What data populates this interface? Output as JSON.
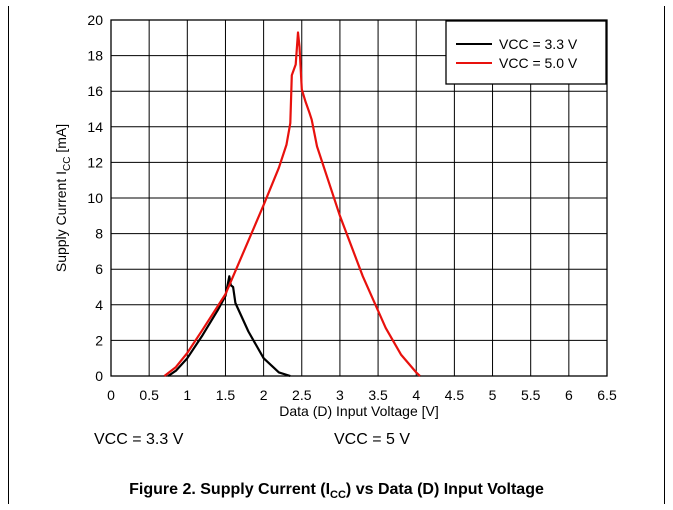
{
  "chart_data": {
    "type": "line",
    "xlabel": "Data (D) Input Voltage [V]",
    "ylabel_prefix": "Supply Current I",
    "ylabel_sub": "CC",
    "ylabel_suffix": " [mA]",
    "xlim": [
      0,
      6.5
    ],
    "ylim": [
      0,
      20
    ],
    "xticks": [
      "0",
      "0.5",
      "1",
      "1.5",
      "2",
      "2.5",
      "3",
      "3.5",
      "4",
      "4.5",
      "5",
      "5.5",
      "6",
      "6.5"
    ],
    "yticks": [
      "0",
      "2",
      "4",
      "6",
      "8",
      "10",
      "12",
      "14",
      "16",
      "18",
      "20"
    ],
    "grid": true,
    "legend_position": "top-right",
    "series": [
      {
        "name": "VCC = 3.3 V",
        "color": "#000000",
        "x": [
          0.75,
          0.85,
          1.0,
          1.2,
          1.4,
          1.5,
          1.55,
          1.57,
          1.6,
          1.63,
          1.8,
          2.0,
          2.2,
          2.35
        ],
        "y": [
          0.0,
          0.3,
          1.0,
          2.3,
          3.7,
          4.5,
          5.6,
          5.1,
          5.0,
          4.1,
          2.5,
          1.0,
          0.2,
          0.0
        ]
      },
      {
        "name": "VCC = 5.0 V",
        "color": "#e8110d",
        "x": [
          0.7,
          0.85,
          1.0,
          1.2,
          1.5,
          1.8,
          2.0,
          2.2,
          2.3,
          2.35,
          2.37,
          2.42,
          2.45,
          2.47,
          2.5,
          2.55,
          2.6,
          2.63,
          2.7,
          3.0,
          3.3,
          3.6,
          3.8,
          4.0,
          4.05
        ],
        "y": [
          0.0,
          0.5,
          1.3,
          2.6,
          4.6,
          7.6,
          9.6,
          11.7,
          13.0,
          14.2,
          16.9,
          17.5,
          19.3,
          18.5,
          16.1,
          15.4,
          14.8,
          14.4,
          12.9,
          9.0,
          5.6,
          2.7,
          1.2,
          0.2,
          0.0
        ]
      }
    ]
  },
  "conditions": {
    "left": "VCC = 3.3 V",
    "right": "VCC = 5 V"
  },
  "caption": {
    "prefix": "Figure 2. Supply Current (I",
    "sub": "CC",
    "suffix": ") vs Data (D) Input Voltage"
  }
}
